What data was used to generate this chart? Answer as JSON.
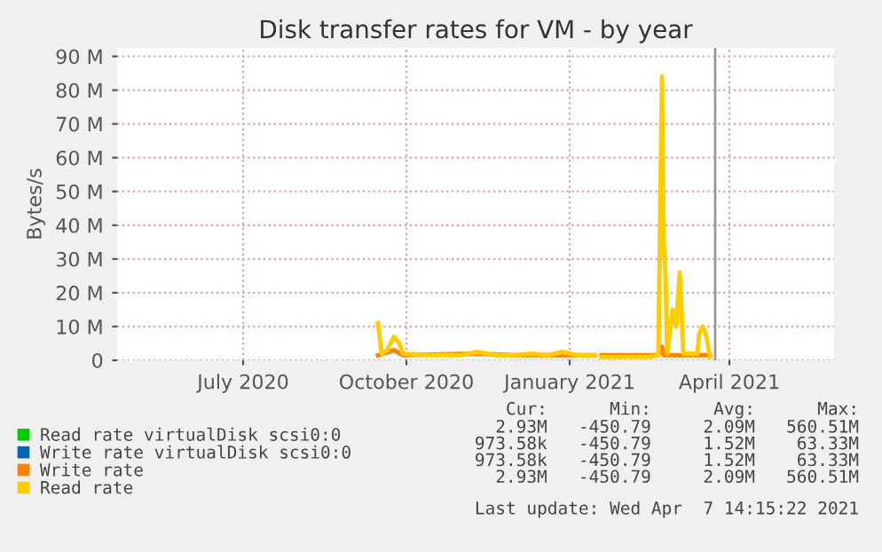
{
  "chart_data": {
    "type": "line",
    "title": "Disk transfer rates for VM - by year",
    "ylabel": "Bytes/s",
    "xlim": [
      "2020-05-05",
      "2021-06-13"
    ],
    "xticks": [
      {
        "value": "2020-07-15",
        "label": "July 2020"
      },
      {
        "value": "2020-10-15",
        "label": "October 2020"
      },
      {
        "value": "2021-01-15",
        "label": "January 2021"
      },
      {
        "value": "2021-04-15",
        "label": "April 2021"
      }
    ],
    "ylim": [
      0,
      92.5
    ],
    "yticks": [
      {
        "value": 0,
        "label": "0"
      },
      {
        "value": 10,
        "label": "10 M"
      },
      {
        "value": 20,
        "label": "20 M"
      },
      {
        "value": 30,
        "label": "30 M"
      },
      {
        "value": 40,
        "label": "40 M"
      },
      {
        "value": 50,
        "label": "50 M"
      },
      {
        "value": 60,
        "label": "60 M"
      },
      {
        "value": 70,
        "label": "70 M"
      },
      {
        "value": 80,
        "label": "80 M"
      },
      {
        "value": 90,
        "label": "90 M"
      }
    ],
    "grid": true,
    "legend": "bottom",
    "ref_lines": [
      {
        "axis": "x",
        "value": "2021-04-07",
        "color": "#999999"
      }
    ],
    "series": [
      {
        "name": "Read rate virtualDisk scsi0:0",
        "color": "#00cc00"
      },
      {
        "name": "Write rate virtualDisk scsi0:0",
        "color": "#0066b3"
      },
      {
        "name": "Write rate",
        "color": "#ff8000",
        "x": [
          "2020-09-29",
          "2020-10-08",
          "2020-10-13",
          "2020-11-24",
          "2020-12-15",
          "2021-01-29",
          "2021-01-31",
          "2021-02-02",
          "2021-03-06",
          "2021-03-08",
          "2021-03-09",
          "2021-04-04"
        ],
        "values": [
          1.5,
          3,
          1.5,
          2,
          1.5,
          1.5,
          null,
          1.5,
          1.5,
          4,
          1.5,
          1.5
        ]
      },
      {
        "name": "Read rate",
        "color": "#ffcc00",
        "x": [
          "2020-09-29",
          "2020-10-01",
          "2020-10-04",
          "2020-10-08",
          "2020-10-11",
          "2020-10-13",
          "2020-10-29",
          "2020-11-15",
          "2020-11-24",
          "2020-12-04",
          "2020-12-15",
          "2020-12-24",
          "2021-01-03",
          "2021-01-11",
          "2021-01-19",
          "2021-01-29",
          "2021-01-31",
          "2021-02-02",
          "2021-02-15",
          "2021-03-01",
          "2021-03-06",
          "2021-03-08",
          "2021-03-09",
          "2021-03-10",
          "2021-03-11",
          "2021-03-14",
          "2021-03-15",
          "2021-03-16",
          "2021-03-18",
          "2021-03-19",
          "2021-03-20",
          "2021-03-28",
          "2021-03-29",
          "2021-03-31",
          "2021-04-02",
          "2021-04-04"
        ],
        "values": [
          11,
          2,
          3,
          7,
          5,
          2,
          1.5,
          1.5,
          2.5,
          1.5,
          1.5,
          2,
          1.5,
          2.5,
          1.5,
          1.5,
          null,
          1,
          1,
          1,
          1.5,
          84,
          35,
          25,
          2,
          15,
          13,
          10,
          26,
          15,
          2,
          2,
          8,
          10,
          7,
          1
        ]
      }
    ],
    "annotations": [
      "Cur:      Min:      Avg:      Max:",
      "   2.93M   -450.79     2.09M   560.51M",
      " 973.58k   -450.79     1.52M    63.33M",
      " 973.58k   -450.79     1.52M    63.33M",
      "   2.93M   -450.79     2.09M   560.51M",
      "Last update: Wed Apr  7 14:15:22 2021"
    ]
  }
}
